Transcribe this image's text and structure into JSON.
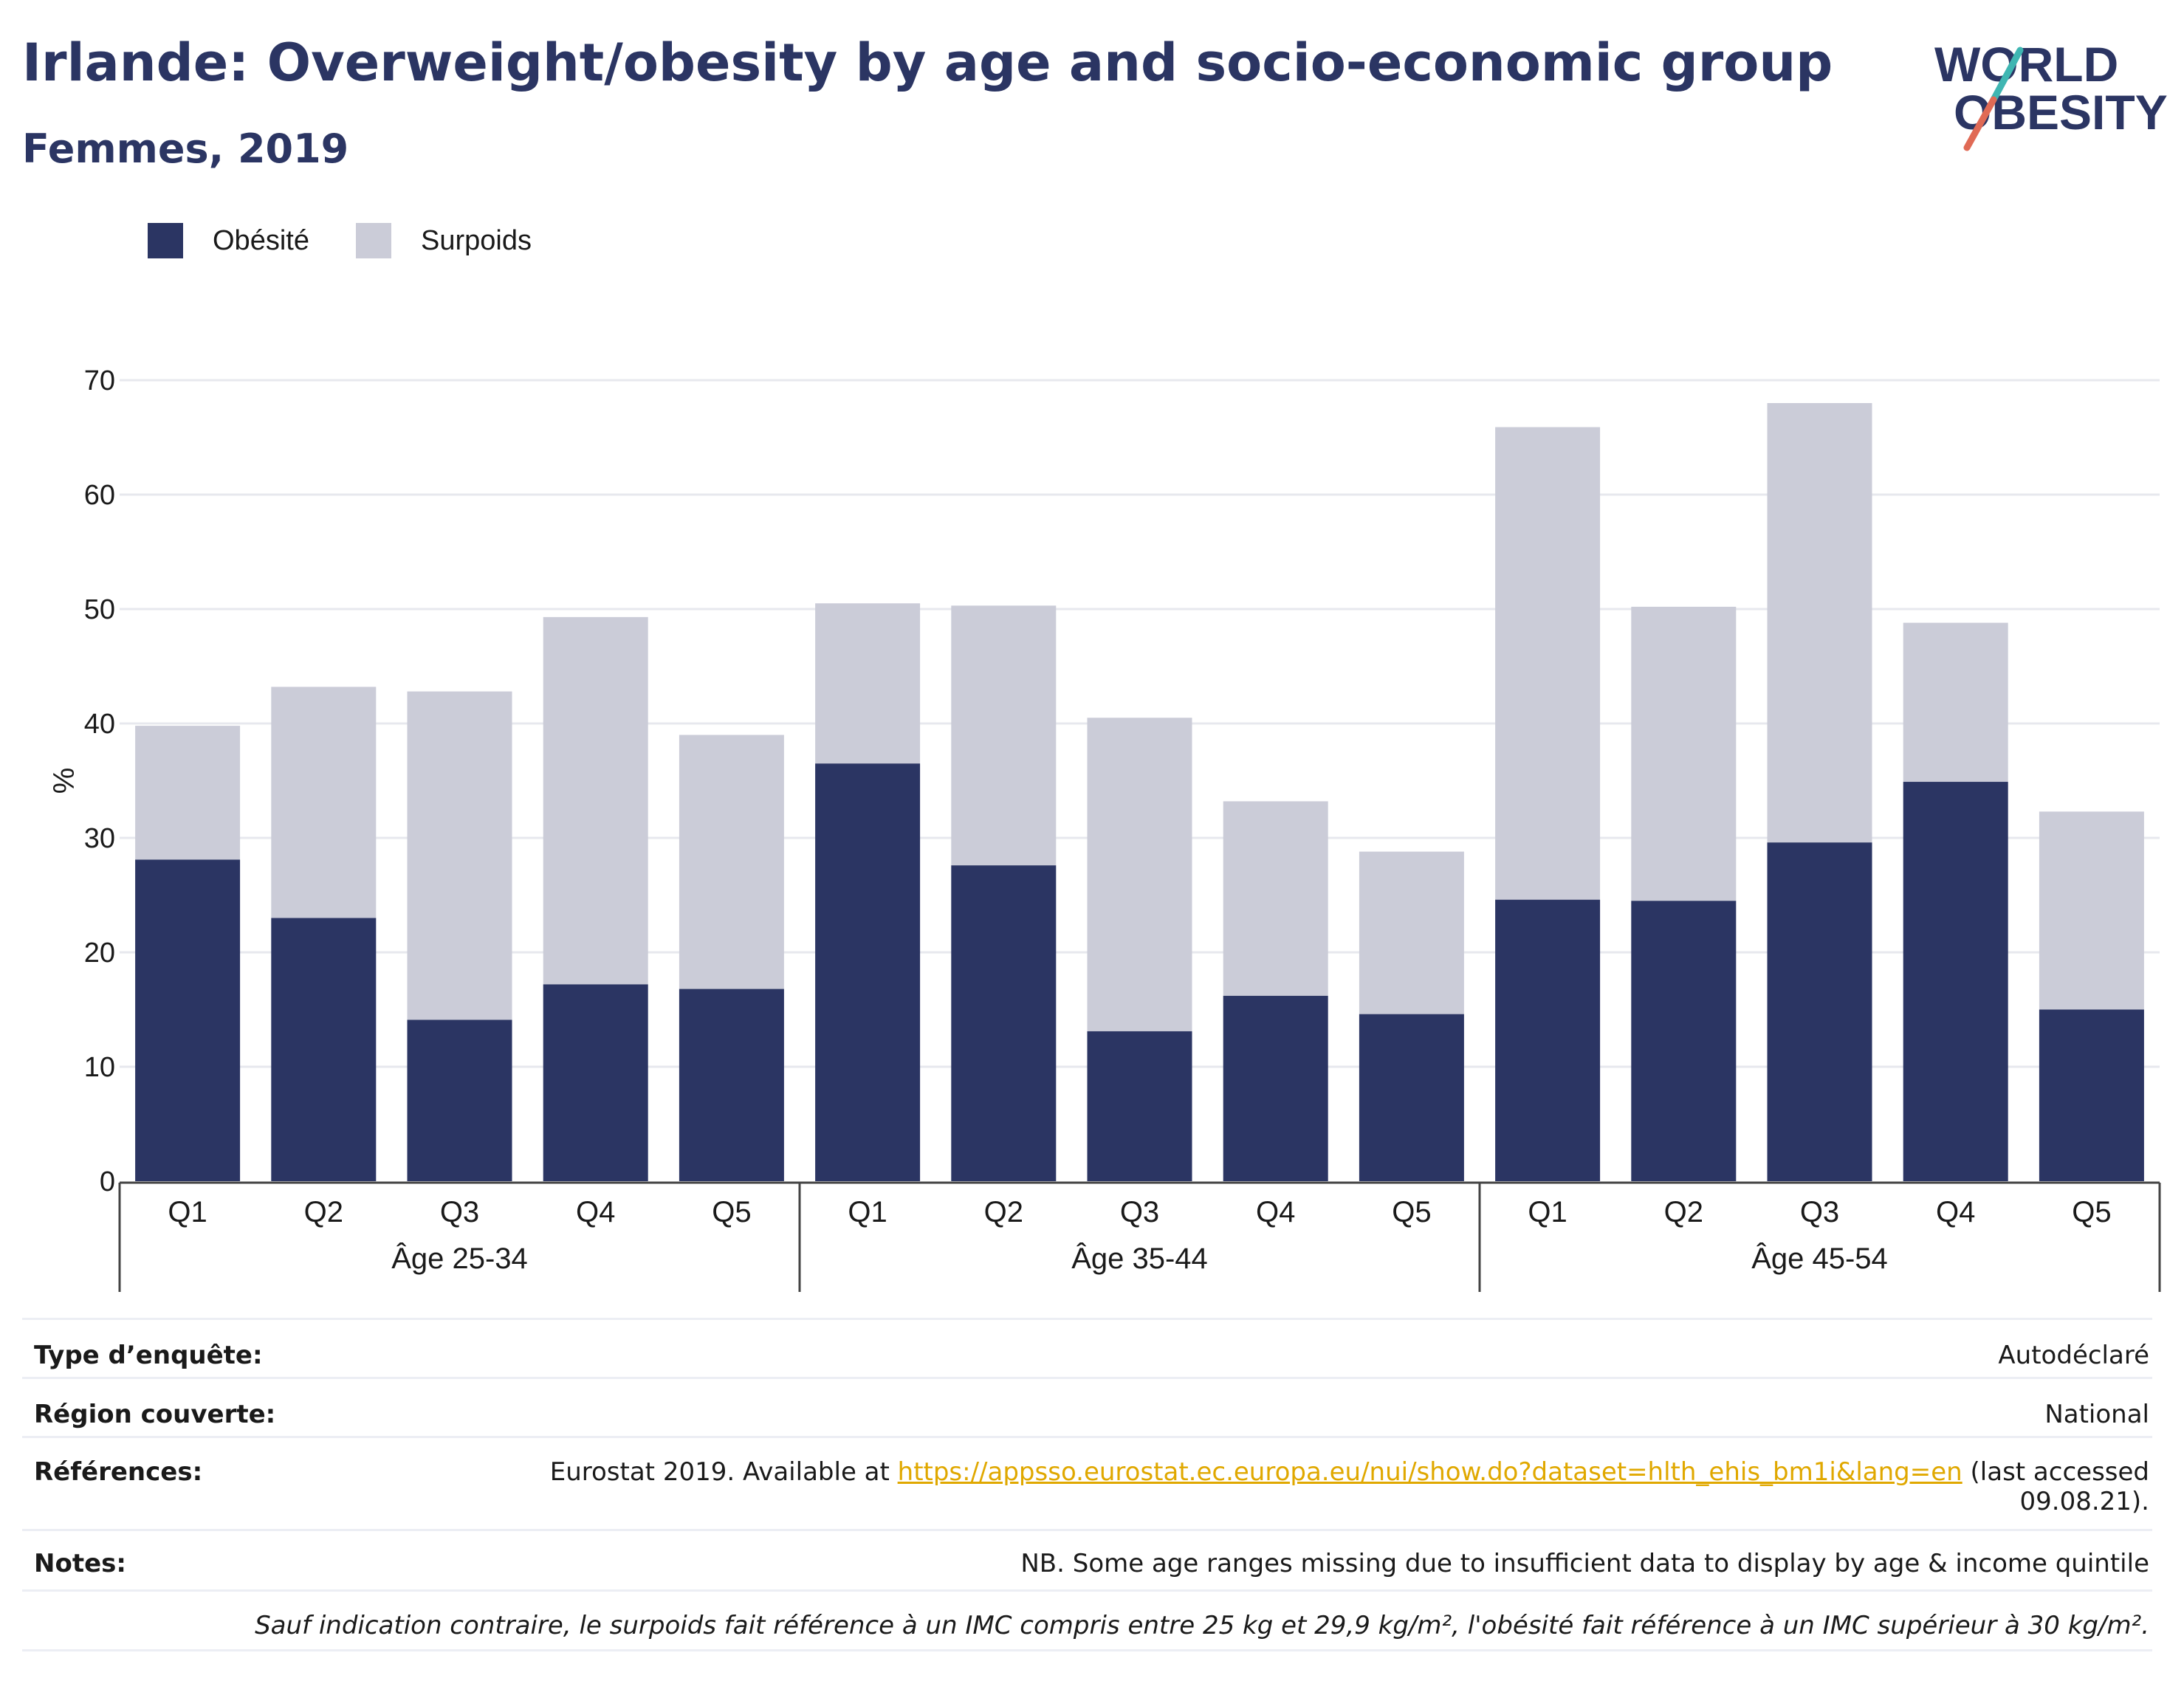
{
  "header": {
    "title": "Irlande: Overweight/obesity by age and socio-economic group",
    "subtitle": "Femmes, 2019"
  },
  "logo": {
    "line1": "WORLD",
    "line2": "OBESITY",
    "icon": "world-obesity-logo"
  },
  "colors": {
    "obesity": "#2b3563",
    "overweight": "#cbccd8",
    "accent_teal": "#3fb6b2",
    "accent_red": "#e06a55",
    "link": "#e0a800"
  },
  "chart_data": {
    "type": "bar",
    "stacked": true,
    "ylabel": "%",
    "ylim": [
      0,
      70
    ],
    "yticks": [
      0,
      10,
      20,
      30,
      40,
      50,
      60,
      70
    ],
    "grid": true,
    "legend_position": "top-left",
    "categories": [
      "Q1",
      "Q2",
      "Q3",
      "Q4",
      "Q5",
      "Q1",
      "Q2",
      "Q3",
      "Q4",
      "Q5",
      "Q1",
      "Q2",
      "Q3",
      "Q4",
      "Q5"
    ],
    "groups": [
      {
        "label": "Âge 25-34",
        "count": 5
      },
      {
        "label": "Âge 35-44",
        "count": 5
      },
      {
        "label": "Âge 45-54",
        "count": 5
      }
    ],
    "series": [
      {
        "name": "Obésité",
        "values": [
          28.1,
          23.0,
          14.1,
          17.2,
          16.8,
          36.5,
          27.6,
          13.1,
          16.2,
          14.6,
          24.6,
          24.5,
          29.6,
          34.9,
          15.0
        ]
      },
      {
        "name": "Surpoids",
        "values": [
          11.7,
          20.2,
          28.7,
          32.1,
          22.2,
          14.0,
          22.7,
          27.4,
          17.0,
          14.2,
          41.3,
          25.7,
          38.4,
          13.9,
          17.3
        ]
      }
    ]
  },
  "info": {
    "survey_label": "Type d’enquête:",
    "survey_value": "Autodéclaré",
    "region_label": "Région couverte:",
    "region_value": "National",
    "references_label": "Références:",
    "references_prefix": "Eurostat 2019. Available at ",
    "references_link": "https://appsso.eurostat.ec.europa.eu/nui/show.do?dataset=hlth_ehis_bm1i&lang=en",
    "references_suffix": " (last accessed",
    "references_line2": "09.08.21).",
    "notes_label": "Notes:",
    "notes_value": "NB. Some age ranges missing due to insufficient data to display by age & income quintile",
    "definition": "Sauf indication contraire, le surpoids fait référence à un IMC compris entre 25 kg et 29,9 kg/m², l'obésité fait référence à un IMC supérieur à 30 kg/m²."
  }
}
